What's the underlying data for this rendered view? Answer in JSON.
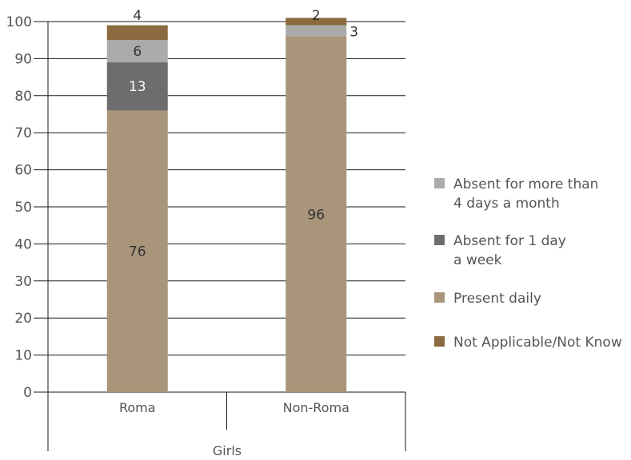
{
  "chart_data": {
    "type": "bar",
    "stacked": true,
    "group_label": "Girls",
    "categories": [
      "Roma",
      "Non-Roma"
    ],
    "series": [
      {
        "name": "Present daily",
        "values": [
          76,
          96
        ],
        "color": "#a8957a",
        "data_labels": [
          "76",
          "96"
        ]
      },
      {
        "name": "Absent for 1 day a week",
        "legend_lines": [
          "Absent for 1 day",
          "a week"
        ],
        "values": [
          13,
          0
        ],
        "color": "#6d6d6d",
        "data_labels": [
          "13",
          ""
        ]
      },
      {
        "name": "Absent for more than 4 days a month",
        "legend_lines": [
          "Absent for more than",
          "4 days a month"
        ],
        "values": [
          6,
          3
        ],
        "color": "#ababab",
        "data_labels": [
          "6",
          "3"
        ]
      },
      {
        "name": "Not Applicable/Not Know",
        "values": [
          4,
          2
        ],
        "color": "#8a6a3e",
        "data_labels": [
          "4",
          "2"
        ]
      }
    ],
    "legend_order": [
      2,
      1,
      0,
      3
    ],
    "yticks": [
      "0",
      "10",
      "20",
      "30",
      "40",
      "50",
      "60",
      "70",
      "80",
      "90",
      "100"
    ],
    "ylim": [
      0,
      100
    ],
    "grid": true,
    "legend_position": "right"
  }
}
